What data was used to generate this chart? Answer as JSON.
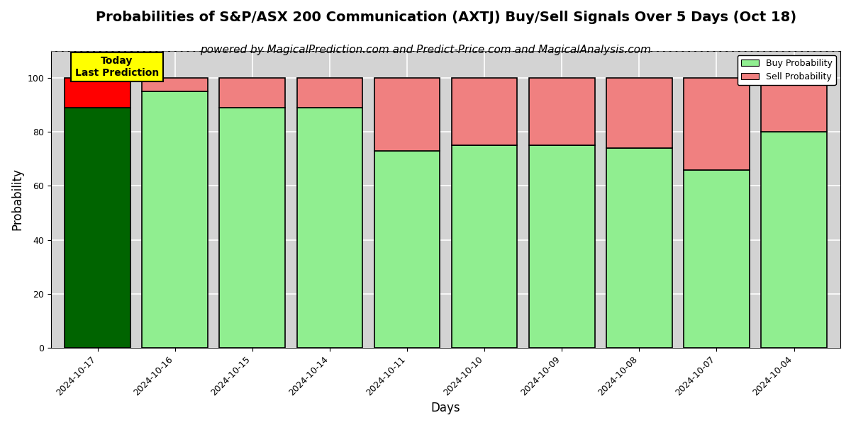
{
  "title": "Probabilities of S&P/ASX 200 Communication (AXTJ) Buy/Sell Signals Over 5 Days (Oct 18)",
  "subtitle": "powered by MagicalPrediction.com and Predict-Price.com and MagicalAnalysis.com",
  "xlabel": "Days",
  "ylabel": "Probability",
  "dates": [
    "2024-10-17",
    "2024-10-16",
    "2024-10-15",
    "2024-10-14",
    "2024-10-11",
    "2024-10-10",
    "2024-10-09",
    "2024-10-08",
    "2024-10-07",
    "2024-10-04"
  ],
  "buy_probs": [
    89,
    95,
    89,
    89,
    73,
    75,
    75,
    74,
    66,
    80
  ],
  "sell_probs": [
    11,
    5,
    11,
    11,
    27,
    25,
    25,
    26,
    34,
    20
  ],
  "today_bar_buy_color": "#006400",
  "today_bar_sell_color": "#FF0000",
  "other_bar_buy_color": "#90EE90",
  "other_bar_sell_color": "#F08080",
  "today_label": "Today\nLast Prediction",
  "today_label_bg": "#FFFF00",
  "legend_buy_color": "#90EE90",
  "legend_sell_color": "#F08080",
  "ylim": [
    0,
    110
  ],
  "yticks": [
    0,
    20,
    40,
    60,
    80,
    100
  ],
  "dashed_line_y": 110,
  "bar_width": 0.85,
  "bar_edge_color": "#000000",
  "bar_linewidth": 1.2,
  "grid_color": "#FFFFFF",
  "bg_color": "#D3D3D3",
  "title_fontsize": 14,
  "subtitle_fontsize": 11,
  "label_fontsize": 12,
  "tick_fontsize": 9
}
